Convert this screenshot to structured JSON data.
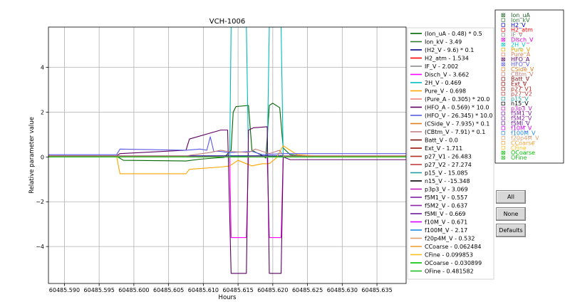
{
  "chart_data": {
    "type": "line",
    "title": "VCH-1006",
    "xlabel": "Hours",
    "ylabel": "Relative parameter value",
    "xlim": [
      60485.5877,
      60485.6392
    ],
    "ylim": [
      -5.65,
      5.8
    ],
    "x_ticks": [
      {
        "value": 60485.59,
        "label": "60485.590"
      },
      {
        "value": 60485.595,
        "label": "60485.595"
      },
      {
        "value": 60485.6,
        "label": "60485.600"
      },
      {
        "value": 60485.605,
        "label": "60485.605"
      },
      {
        "value": 60485.61,
        "label": "60485.610"
      },
      {
        "value": 60485.615,
        "label": "60485.615"
      },
      {
        "value": 60485.62,
        "label": "60485.620"
      },
      {
        "value": 60485.625,
        "label": "60485.625"
      },
      {
        "value": 60485.63,
        "label": "60485.630"
      },
      {
        "value": 60485.635,
        "label": "60485.635"
      }
    ],
    "y_ticks": [
      {
        "value": 4,
        "label": "4"
      },
      {
        "value": 2,
        "label": "2"
      },
      {
        "value": 0,
        "label": "0"
      },
      {
        "value": -2,
        "label": "−2"
      },
      {
        "value": -4,
        "label": "−4"
      }
    ],
    "grid": true,
    "legend_position": "right",
    "series": [
      {
        "name": "(Ion_uA - 0.48) * 0.5",
        "color": "#006400",
        "points": [
          [
            60485.5877,
            0.02
          ],
          [
            60485.5975,
            0.03
          ],
          [
            60485.5985,
            -0.15
          ],
          [
            60485.6075,
            -0.18
          ],
          [
            60485.6095,
            -0.1
          ],
          [
            60485.612,
            -0.04
          ],
          [
            60485.613,
            -0.02
          ],
          [
            60485.614,
            0.3
          ],
          [
            60485.6143,
            2.0
          ],
          [
            60485.6147,
            2.25
          ],
          [
            60485.6165,
            2.3
          ],
          [
            60485.617,
            0.3
          ],
          [
            60485.6185,
            0.05
          ],
          [
            60485.619,
            -0.05
          ],
          [
            60485.6195,
            2.3
          ],
          [
            60485.62,
            2.4
          ],
          [
            60485.621,
            2.2
          ],
          [
            60485.6215,
            0.4
          ],
          [
            60485.6225,
            0.1
          ],
          [
            60485.625,
            0.02
          ],
          [
            60485.6392,
            0.02
          ]
        ]
      },
      {
        "name": "Ion_kV - 3.49",
        "color": "#2e7d32",
        "points": [
          [
            60485.5877,
            0.0
          ],
          [
            60485.6392,
            0.0
          ]
        ]
      },
      {
        "name": "(H2_V - 9.6) * 0.1",
        "color": "#00008b",
        "points": [
          [
            60485.5877,
            0.05
          ],
          [
            60485.6392,
            0.05
          ]
        ]
      },
      {
        "name": "H2_atm - 1.534",
        "color": "#ff0000",
        "points": [
          [
            60485.5877,
            0.0
          ],
          [
            60485.6392,
            0.0
          ]
        ]
      },
      {
        "name": "IF_V - 2.002",
        "color": "#8b8b8b",
        "points": [
          [
            60485.5877,
            0.0
          ],
          [
            60485.6392,
            0.0
          ]
        ]
      },
      {
        "name": "Disch_V - 3.662",
        "color": "#ff00ff",
        "points": [
          [
            60485.5877,
            0.02
          ],
          [
            60485.6138,
            0.02
          ],
          [
            60485.614,
            -3.6
          ],
          [
            60485.6162,
            -3.6
          ],
          [
            60485.6165,
            0.02
          ],
          [
            60485.6192,
            0.02
          ],
          [
            60485.6195,
            -3.6
          ],
          [
            60485.6212,
            -3.6
          ],
          [
            60485.6215,
            0.02
          ],
          [
            60485.6392,
            0.02
          ]
        ]
      },
      {
        "name": "2H_V - 0.469",
        "color": "#00bcbc",
        "points": [
          [
            60485.5877,
            0.01
          ],
          [
            60485.6138,
            0.01
          ],
          [
            60485.614,
            5.8
          ],
          [
            60485.6162,
            5.8
          ],
          [
            60485.6165,
            0.01
          ],
          [
            60485.6192,
            0.01
          ],
          [
            60485.6195,
            5.8
          ],
          [
            60485.6212,
            5.8
          ],
          [
            60485.6215,
            0.01
          ],
          [
            60485.6392,
            0.01
          ]
        ]
      },
      {
        "name": "Pure_V - 0.698",
        "color": "#ffa500",
        "points": [
          [
            60485.5877,
            0.05
          ],
          [
            60485.5975,
            0.05
          ],
          [
            60485.598,
            -0.75
          ],
          [
            60485.6075,
            -0.75
          ],
          [
            60485.608,
            -0.55
          ],
          [
            60485.6125,
            -0.45
          ],
          [
            60485.6138,
            -0.4
          ],
          [
            60485.615,
            -0.15
          ],
          [
            60485.617,
            -0.4
          ],
          [
            60485.6185,
            -0.3
          ],
          [
            60485.6195,
            -0.3
          ],
          [
            60485.6205,
            -0.05
          ],
          [
            60485.6215,
            0.5
          ],
          [
            60485.622,
            0.4
          ],
          [
            60485.6235,
            0.1
          ],
          [
            60485.626,
            0.05
          ],
          [
            60485.6392,
            0.05
          ]
        ]
      },
      {
        "name": "(Pure_A - 0.305) * 20.0",
        "color": "#f08080",
        "points": [
          [
            60485.5877,
            0.0
          ],
          [
            60485.6392,
            0.0
          ]
        ]
      },
      {
        "name": "(HFO_A - 0.569) * 10.0",
        "color": "#5c0060",
        "points": [
          [
            60485.5877,
            0.05
          ],
          [
            60485.5975,
            0.05
          ],
          [
            60485.598,
            0.15
          ],
          [
            60485.6075,
            0.3
          ],
          [
            60485.608,
            0.8
          ],
          [
            60485.6125,
            1.2
          ],
          [
            60485.6135,
            1.2
          ],
          [
            60485.614,
            -5.2
          ],
          [
            60485.6162,
            -5.2
          ],
          [
            60485.6165,
            1.2
          ],
          [
            60485.6172,
            1.3
          ],
          [
            60485.6192,
            1.35
          ],
          [
            60485.6195,
            -5.2
          ],
          [
            60485.6212,
            -5.2
          ],
          [
            60485.6215,
            0.0
          ],
          [
            60485.6225,
            -0.12
          ],
          [
            60485.6392,
            -0.12
          ]
        ]
      },
      {
        "name": "(HFO_V - 26.345) * 10.0",
        "color": "#5a5ae6",
        "points": [
          [
            60485.5877,
            0.1
          ],
          [
            60485.5975,
            0.1
          ],
          [
            60485.598,
            0.35
          ],
          [
            60485.6075,
            0.3
          ],
          [
            60485.6095,
            0.35
          ],
          [
            60485.6105,
            0.3
          ],
          [
            60485.611,
            0.9
          ],
          [
            60485.6115,
            0.25
          ],
          [
            60485.6125,
            0.25
          ],
          [
            60485.6135,
            0.2
          ],
          [
            60485.614,
            0.2
          ],
          [
            60485.617,
            0.25
          ],
          [
            60485.6185,
            0.1
          ],
          [
            60485.6215,
            0.15
          ],
          [
            60485.6392,
            0.15
          ]
        ]
      },
      {
        "name": "(CSide_V - 7.935) * 0.1",
        "color": "#e08020",
        "points": [
          [
            60485.5877,
            0.0
          ],
          [
            60485.6392,
            0.0
          ]
        ]
      },
      {
        "name": "(CBtm_V - 7.91) * 0.1",
        "color": "#c08080",
        "points": [
          [
            60485.5877,
            0.05
          ],
          [
            60485.6075,
            0.05
          ],
          [
            60485.611,
            0.2
          ],
          [
            60485.6125,
            0.3
          ],
          [
            60485.6135,
            0.25
          ],
          [
            60485.6165,
            0.2
          ],
          [
            60485.6175,
            0.35
          ],
          [
            60485.6195,
            0.15
          ],
          [
            60485.621,
            0.3
          ],
          [
            60485.6215,
            0.05
          ],
          [
            60485.6392,
            0.05
          ]
        ]
      },
      {
        "name": "Batt_V - 0.0",
        "color": "#7b1010",
        "points": [
          [
            60485.5877,
            0.0
          ],
          [
            60485.6392,
            0.0
          ]
        ]
      },
      {
        "name": "Ext_V - 1.711",
        "color": "#a01010",
        "points": [
          [
            60485.5877,
            0.0
          ],
          [
            60485.6392,
            0.0
          ]
        ]
      },
      {
        "name": "p27_V1 - 26.483",
        "color": "#b03020",
        "points": [
          [
            60485.5877,
            0.0
          ],
          [
            60485.6392,
            0.0
          ]
        ]
      },
      {
        "name": "p27_V2 - 27.274",
        "color": "#c04040",
        "points": [
          [
            60485.5877,
            0.0
          ],
          [
            60485.6392,
            0.0
          ]
        ]
      },
      {
        "name": "p15_V - 15.085",
        "color": "#20a0a0",
        "points": [
          [
            60485.5877,
            0.0
          ],
          [
            60485.6392,
            0.0
          ]
        ]
      },
      {
        "name": "n15_V - -15.348",
        "color": "#000000",
        "points": [
          [
            60485.5877,
            0.0
          ],
          [
            60485.6392,
            0.0
          ]
        ]
      },
      {
        "name": "p3p3_V - 3.069",
        "color": "#c020c0",
        "points": [
          [
            60485.5877,
            0.0
          ],
          [
            60485.6392,
            0.0
          ]
        ]
      },
      {
        "name": "f5M1_V - 0.557",
        "color": "#7b1fa2",
        "points": [
          [
            60485.5877,
            0.0
          ],
          [
            60485.6392,
            0.0
          ]
        ]
      },
      {
        "name": "f5M2_V - 0.637",
        "color": "#8e24aa",
        "points": [
          [
            60485.5877,
            0.0
          ],
          [
            60485.6392,
            0.0
          ]
        ]
      },
      {
        "name": "f5MI_V - 0.669",
        "color": "#6a1b9a",
        "points": [
          [
            60485.5877,
            0.0
          ],
          [
            60485.6392,
            0.0
          ]
        ]
      },
      {
        "name": "f10M_V - 0.671",
        "color": "#d500f9",
        "points": [
          [
            60485.5877,
            0.0
          ],
          [
            60485.6392,
            0.0
          ]
        ]
      },
      {
        "name": "f100M_V - 2.17",
        "color": "#1e88e5",
        "points": [
          [
            60485.5877,
            0.0
          ],
          [
            60485.6392,
            0.0
          ]
        ]
      },
      {
        "name": "f20p4M_V - 0.532",
        "color": "#e0a070",
        "points": [
          [
            60485.5877,
            0.0
          ],
          [
            60485.6392,
            0.0
          ]
        ]
      },
      {
        "name": "CCoarse - 0.062484",
        "color": "#f0a030",
        "points": [
          [
            60485.5877,
            0.0
          ],
          [
            60485.6392,
            0.0
          ]
        ]
      },
      {
        "name": "CFine - 0.099853",
        "color": "#ffc020",
        "points": [
          [
            60485.5877,
            0.0
          ],
          [
            60485.6392,
            0.0
          ]
        ]
      },
      {
        "name": "OCoarse - 0.030899",
        "color": "#00c000",
        "points": [
          [
            60485.5877,
            0.0
          ],
          [
            60485.6392,
            0.0
          ]
        ]
      },
      {
        "name": "OFine - 0.481582",
        "color": "#20c020",
        "points": [
          [
            60485.5877,
            0.0
          ],
          [
            60485.6392,
            0.0
          ]
        ]
      }
    ]
  },
  "checkbox_panel": {
    "items": [
      {
        "label": "Ion_uA",
        "color": "#1b5e20",
        "checked": true
      },
      {
        "label": "Ion_kV",
        "color": "#2e7d32",
        "checked": false
      },
      {
        "label": "H2_V",
        "color": "#0000cd",
        "checked": false
      },
      {
        "label": "H2_atm",
        "color": "#ff0000",
        "checked": false
      },
      {
        "label": "IF_V",
        "color": "#8b8b8b",
        "checked": false
      },
      {
        "label": "Disch_V",
        "color": "#e000e0",
        "checked": true
      },
      {
        "label": "2H_V",
        "color": "#00c8c8",
        "checked": true
      },
      {
        "label": "Pure_V",
        "color": "#e0a000",
        "checked": false
      },
      {
        "label": "Pure_A",
        "color": "#e08060",
        "checked": false
      },
      {
        "label": "HFO_A",
        "color": "#5c0060",
        "checked": true
      },
      {
        "label": "HFO_V",
        "color": "#5a5ae6",
        "checked": true
      },
      {
        "label": "CSide_V",
        "color": "#e08020",
        "checked": false
      },
      {
        "label": "CBtm_V",
        "color": "#c08080",
        "checked": false
      },
      {
        "label": "Batt_V",
        "color": "#8b1a1a",
        "checked": false
      },
      {
        "label": "Ext_V",
        "color": "#a01010",
        "checked": false
      },
      {
        "label": "p27_V1",
        "color": "#b03020",
        "checked": false
      },
      {
        "label": "p27_V2",
        "color": "#c04040",
        "checked": false
      },
      {
        "label": "p15_V",
        "color": "#20a0a0",
        "checked": false
      },
      {
        "label": "n15_V",
        "color": "#000000",
        "checked": false
      },
      {
        "label": "p3p3_V",
        "color": "#c020c0",
        "checked": false
      },
      {
        "label": "f5M1_V",
        "color": "#7b1fa2",
        "checked": false
      },
      {
        "label": "f5M2_V",
        "color": "#8e24aa",
        "checked": false
      },
      {
        "label": "f5MI_V",
        "color": "#6a1b9a",
        "checked": false
      },
      {
        "label": "f10M_V",
        "color": "#d500f9",
        "checked": false
      },
      {
        "label": "f100M_V",
        "color": "#1e88e5",
        "checked": false
      },
      {
        "label": "f20p4M_V",
        "color": "#e0a070",
        "checked": false
      },
      {
        "label": "CCoarse",
        "color": "#f0a030",
        "checked": false
      },
      {
        "label": "CFine",
        "color": "#ffc020",
        "checked": false
      },
      {
        "label": "OCoarse",
        "color": "#00c000",
        "checked": true
      },
      {
        "label": "OFine",
        "color": "#20c020",
        "checked": true
      }
    ]
  },
  "buttons": {
    "all_label": "All",
    "none_label": "None",
    "defaults_label": "Defaults"
  }
}
